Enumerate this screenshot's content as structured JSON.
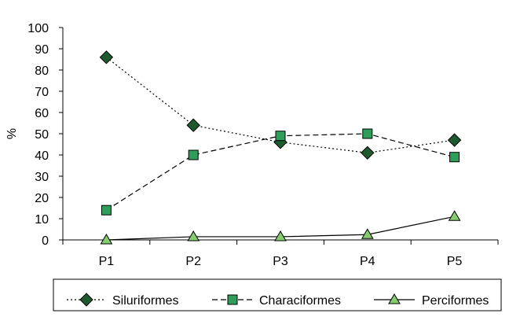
{
  "chart_data": {
    "type": "line",
    "title": "",
    "xlabel": "",
    "ylabel": "%",
    "categories": [
      "P1",
      "P2",
      "P3",
      "P4",
      "P5"
    ],
    "ylim": [
      0,
      100
    ],
    "yticks": [
      0,
      10,
      20,
      30,
      40,
      50,
      60,
      70,
      80,
      90,
      100
    ],
    "grid": false,
    "legend": "bottom",
    "series": [
      {
        "name": "Siluriformes",
        "values": [
          86,
          54,
          46,
          41,
          47
        ],
        "marker": "diamond",
        "line_style": "dotted",
        "color": "#1f5a2e"
      },
      {
        "name": "Characiformes",
        "values": [
          14,
          40,
          49,
          50,
          39
        ],
        "marker": "square",
        "line_style": "dashed",
        "color": "#2f9e5b"
      },
      {
        "name": "Perciformes",
        "values": [
          0,
          1.5,
          1.5,
          2.5,
          11
        ],
        "marker": "triangle",
        "line_style": "solid",
        "color": "#86cc6f"
      }
    ]
  }
}
